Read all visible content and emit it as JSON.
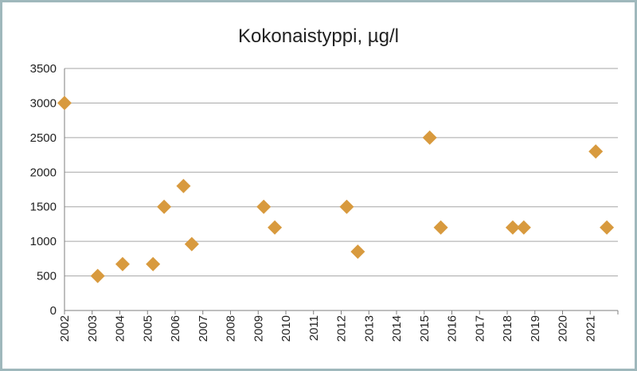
{
  "chart_data": {
    "type": "scatter",
    "title": "Kokonaistyppi, µg/l",
    "xlabel": "",
    "ylabel": "",
    "xlim": [
      2002,
      2022
    ],
    "ylim": [
      0,
      3500
    ],
    "yticks": [
      0,
      500,
      1000,
      1500,
      2000,
      2500,
      3000,
      3500
    ],
    "xticks": [
      "2002",
      "2003",
      "2004",
      "2005",
      "2006",
      "2007",
      "2008",
      "2009",
      "2010",
      "2011",
      "2012",
      "2013",
      "2014",
      "2015",
      "2016",
      "2017",
      "2018",
      "2019",
      "2020",
      "2021"
    ],
    "grid": true,
    "legend": "none",
    "marker": "diamond",
    "colors": {
      "marker": "#d89a3e",
      "grid": "#a6a6a6",
      "axis": "#7f7f7f"
    },
    "series": [
      {
        "points": [
          {
            "x": 2002.0,
            "y": 3000
          },
          {
            "x": 2003.2,
            "y": 500
          },
          {
            "x": 2004.1,
            "y": 670
          },
          {
            "x": 2005.2,
            "y": 670
          },
          {
            "x": 2005.6,
            "y": 1500
          },
          {
            "x": 2006.3,
            "y": 1800
          },
          {
            "x": 2006.6,
            "y": 960
          },
          {
            "x": 2009.2,
            "y": 1500
          },
          {
            "x": 2009.6,
            "y": 1200
          },
          {
            "x": 2012.2,
            "y": 1500
          },
          {
            "x": 2012.6,
            "y": 850
          },
          {
            "x": 2015.2,
            "y": 2500
          },
          {
            "x": 2015.6,
            "y": 1200
          },
          {
            "x": 2018.2,
            "y": 1200
          },
          {
            "x": 2018.6,
            "y": 1200
          },
          {
            "x": 2021.2,
            "y": 2300
          },
          {
            "x": 2021.6,
            "y": 1200
          }
        ]
      }
    ]
  }
}
